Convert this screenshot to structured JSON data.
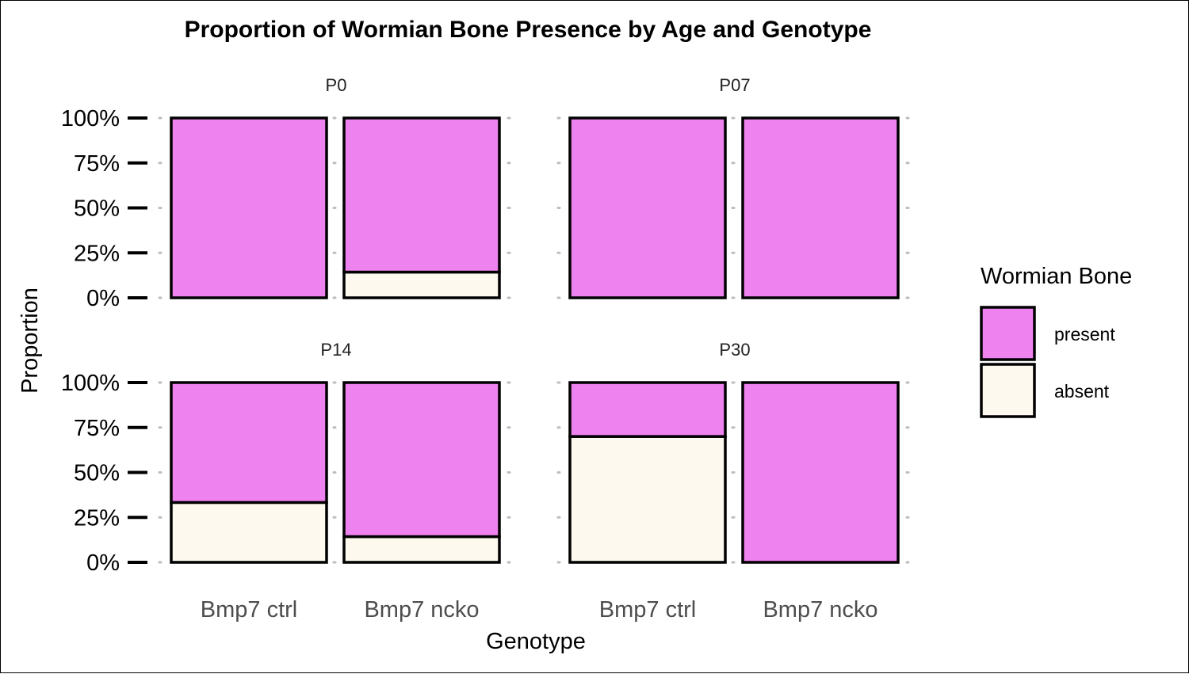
{
  "chart_data": {
    "type": "bar",
    "stacked": true,
    "title": "Proportion of Wormian Bone Presence by Age and Genotype",
    "xlabel": "Genotype",
    "ylabel": "Proportion",
    "ylim": [
      0,
      1
    ],
    "yticks": [
      "0%",
      "25%",
      "50%",
      "75%",
      "100%"
    ],
    "categories": [
      "Bmp7 ctrl",
      "Bmp7 ncko"
    ],
    "legend": {
      "title": "Wormian Bone",
      "position": "right",
      "entries": [
        {
          "label": "present",
          "color": "#EE82EE"
        },
        {
          "label": "absent",
          "color": "#FDF9EE"
        }
      ]
    },
    "grid": "dotted horizontal major lines",
    "facets": [
      {
        "label": "P0",
        "series": [
          {
            "name": "present",
            "values": [
              1.0,
              0.857
            ]
          },
          {
            "name": "absent",
            "values": [
              0.0,
              0.143
            ]
          }
        ]
      },
      {
        "label": "P07",
        "series": [
          {
            "name": "present",
            "values": [
              1.0,
              1.0
            ]
          },
          {
            "name": "absent",
            "values": [
              0.0,
              0.0
            ]
          }
        ]
      },
      {
        "label": "P14",
        "series": [
          {
            "name": "present",
            "values": [
              0.667,
              0.857
            ]
          },
          {
            "name": "absent",
            "values": [
              0.333,
              0.143
            ]
          }
        ]
      },
      {
        "label": "P30",
        "series": [
          {
            "name": "present",
            "values": [
              0.3,
              1.0
            ]
          },
          {
            "name": "absent",
            "values": [
              0.7,
              0.0
            ]
          }
        ]
      }
    ]
  }
}
